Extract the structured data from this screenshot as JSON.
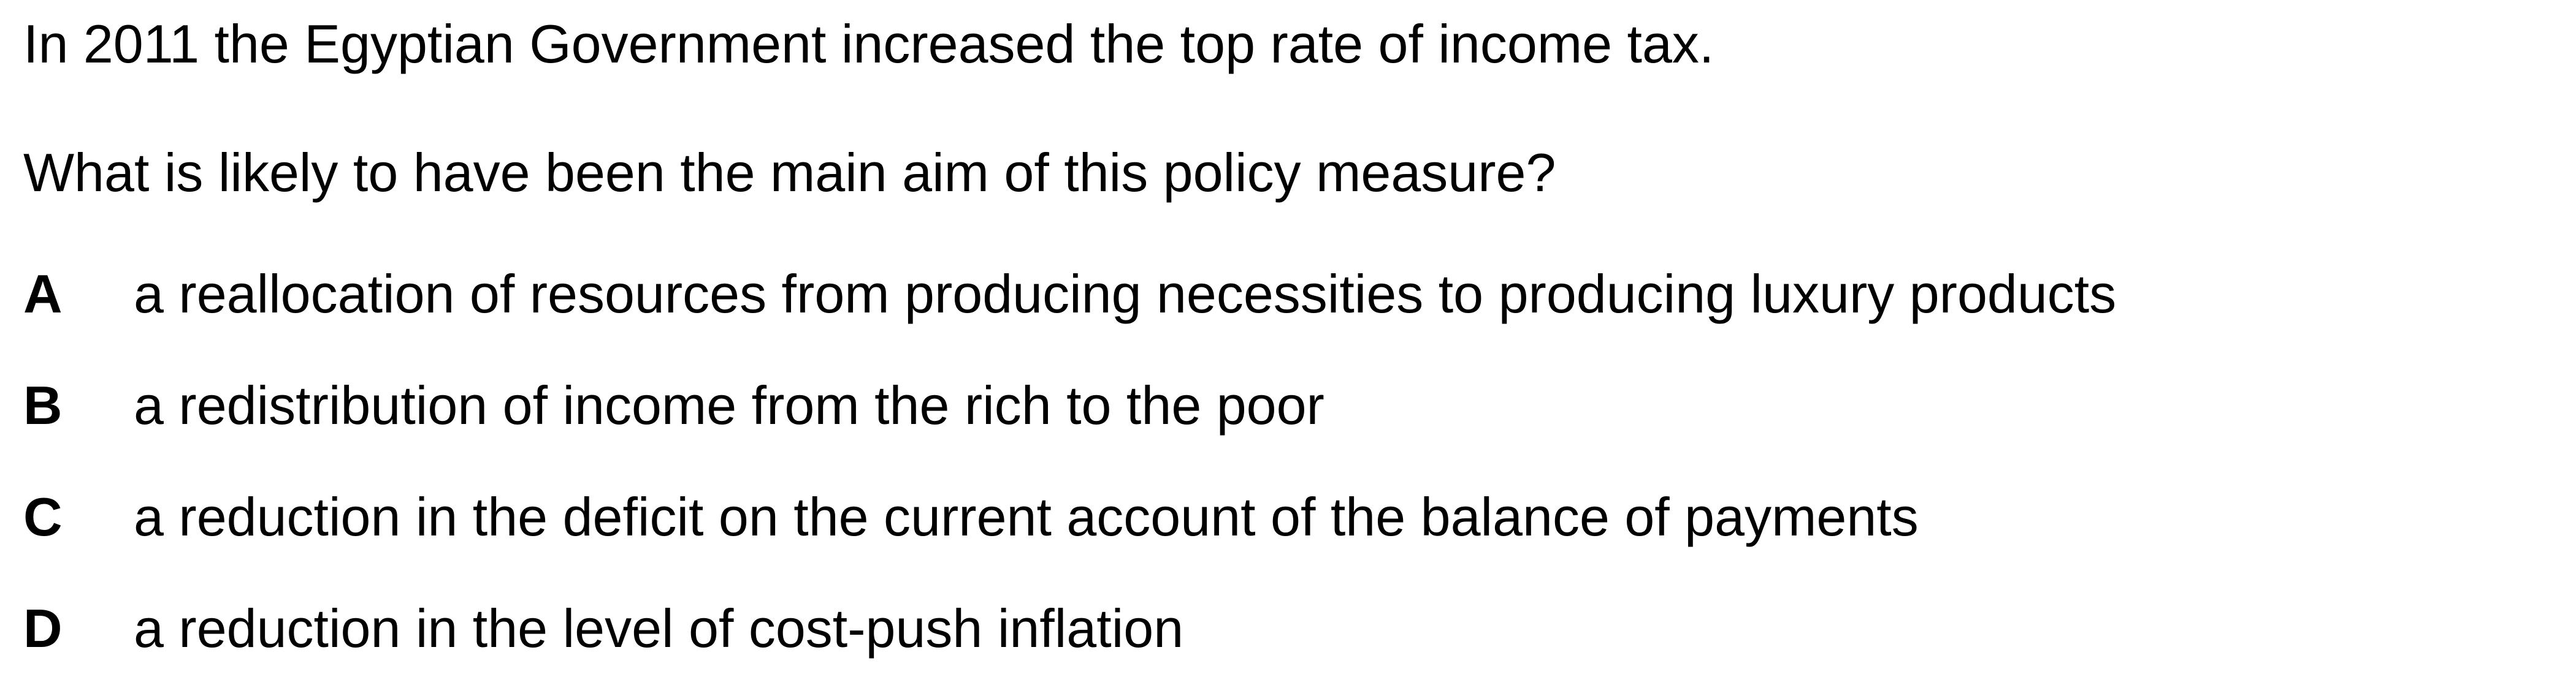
{
  "question": {
    "context": "In 2011 the Egyptian Government increased the top rate of income tax.",
    "prompt": "What is likely to have been the main aim of this policy measure?"
  },
  "options": [
    {
      "letter": "A",
      "text": "a reallocation of resources from producing necessities to producing luxury products"
    },
    {
      "letter": "B",
      "text": "a redistribution of income from the rich to the poor"
    },
    {
      "letter": "C",
      "text": "a reduction in the deficit on the current account of the balance of payments"
    },
    {
      "letter": "D",
      "text": "a reduction in the level of cost-push inflation"
    }
  ]
}
